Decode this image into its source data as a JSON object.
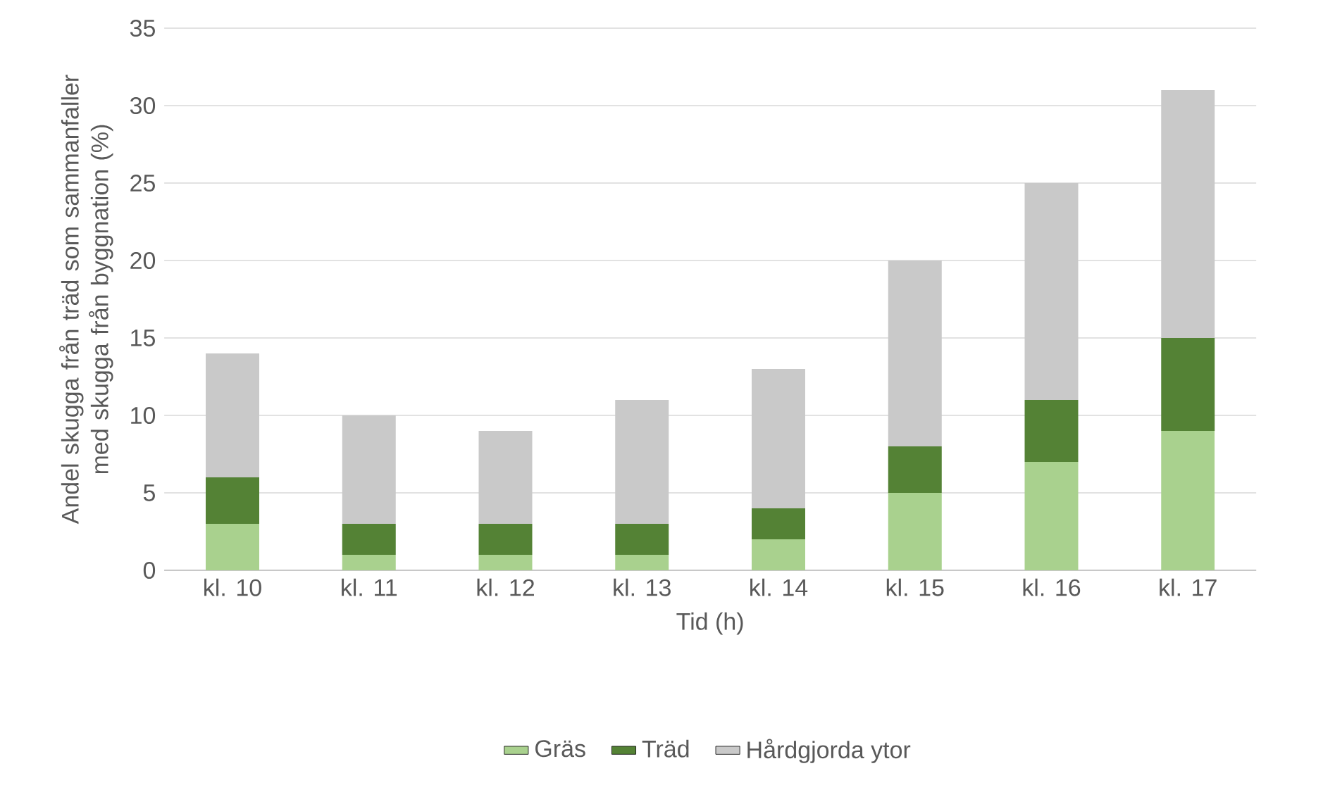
{
  "chart_data": {
    "type": "bar",
    "stacked": true,
    "xlabel": "Tid (h)",
    "ylabel": "Andel skugga från träd som sammanfaller med skugga från byggnation (%)",
    "categories": [
      "kl. 10",
      "kl. 11",
      "kl. 12",
      "kl. 13",
      "kl. 14",
      "kl. 15",
      "kl. 16",
      "kl. 17"
    ],
    "series": [
      {
        "name": "Gräs",
        "color": "#a9d18e",
        "values": [
          3,
          1,
          1,
          1,
          2,
          5,
          7,
          9
        ]
      },
      {
        "name": "Träd",
        "color": "#548235",
        "values": [
          3,
          2,
          2,
          2,
          2,
          3,
          4,
          6
        ]
      },
      {
        "name": "Hårdgjorda ytor",
        "color": "#c9c9c9",
        "values": [
          8,
          7,
          6,
          8,
          9,
          12,
          14,
          16
        ]
      }
    ],
    "ylim": [
      0,
      35
    ],
    "yticks": [
      0,
      5,
      10,
      15,
      20,
      25,
      30,
      35
    ],
    "grid": "y",
    "legend": "bottom"
  }
}
